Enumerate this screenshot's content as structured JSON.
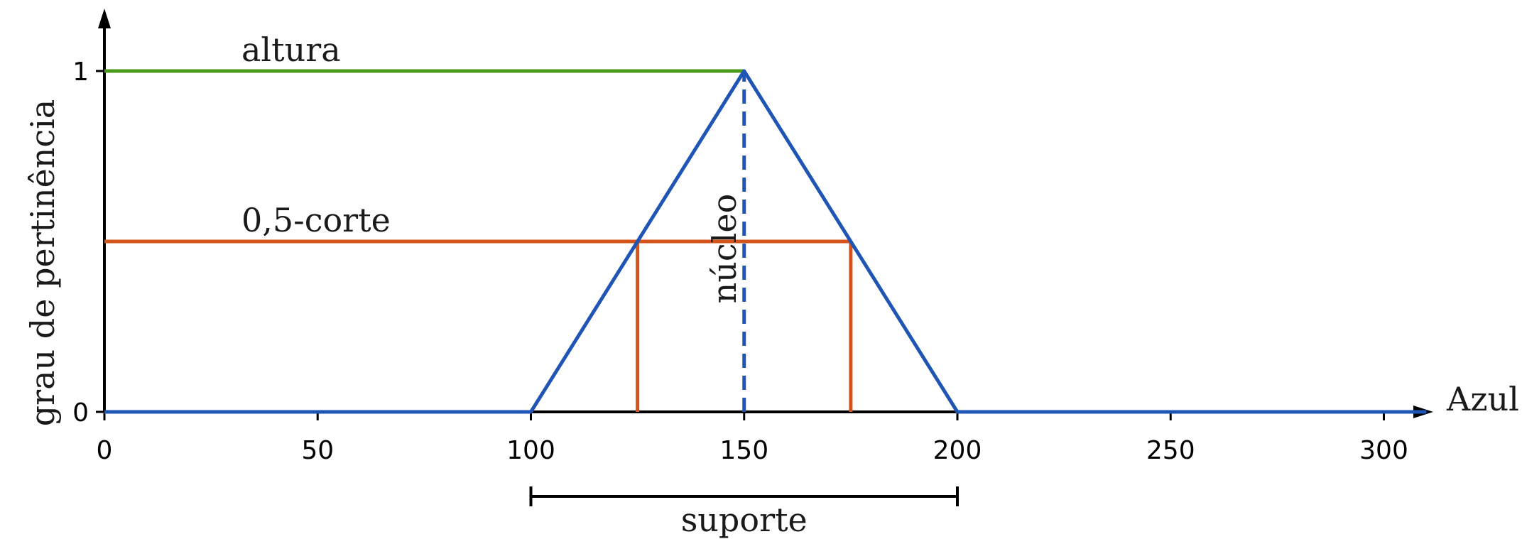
{
  "chart_data": {
    "type": "line",
    "xlabel": "Azul",
    "ylabel": "grau de pertinência",
    "xlim": [
      0,
      310
    ],
    "ylim": [
      0,
      1
    ],
    "x_ticks": [
      "0",
      "50",
      "100",
      "150",
      "200",
      "250",
      "300"
    ],
    "x_tick_values": [
      0,
      50,
      100,
      150,
      200,
      250,
      300
    ],
    "y_ticks": [
      "0",
      "1"
    ],
    "y_tick_values": [
      0,
      1
    ],
    "grid": false,
    "series": [
      {
        "name": "",
        "color": "#1f55b4",
        "points": [
          [
            0,
            0
          ],
          [
            100,
            0
          ],
          [
            150,
            1
          ],
          [
            200,
            0
          ],
          [
            310,
            0
          ]
        ]
      }
    ],
    "annotations": {
      "height": {
        "label": "altura",
        "y": 1,
        "x_from": 0,
        "x_to": 150,
        "color": "#4c9a1c"
      },
      "alpha_cut": {
        "label": "0,5-corte",
        "y": 0.5,
        "x_from": 0,
        "x_to": 175,
        "left": 125,
        "right": 175,
        "color": "#d4541c"
      },
      "core": {
        "label": "núcleo",
        "x": 150,
        "y_from": 0,
        "y_to": 1,
        "color": "#1f55b4"
      },
      "support": {
        "label": "suporte",
        "x_from": 100,
        "x_to": 200
      }
    }
  }
}
